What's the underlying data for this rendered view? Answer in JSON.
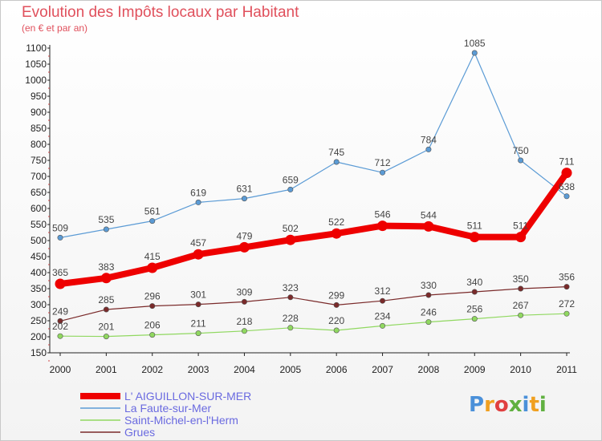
{
  "title": "Evolution des Impôts locaux par Habitant",
  "subtitle": "(en € et par an)",
  "logo": "Proxiti",
  "chart_data": {
    "type": "line",
    "x": [
      "2000",
      "2001",
      "2002",
      "2003",
      "2004",
      "2005",
      "2006",
      "2007",
      "2008",
      "2009",
      "2010",
      "2011"
    ],
    "ylim": [
      150,
      1100
    ],
    "yticks": [
      150,
      200,
      250,
      300,
      350,
      400,
      450,
      500,
      550,
      600,
      650,
      700,
      750,
      800,
      850,
      900,
      950,
      1000,
      1050,
      1100
    ],
    "grid": false,
    "legend_position": "bottom-left",
    "series": [
      {
        "name": "L' AIGUILLON-SUR-MER",
        "color": "#ee0000",
        "values": [
          365,
          383,
          415,
          457,
          479,
          502,
          522,
          546,
          544,
          511,
          511,
          711
        ]
      },
      {
        "name": "La Faute-sur-Mer",
        "color": "#5b9bd5",
        "values": [
          509,
          535,
          561,
          619,
          631,
          659,
          745,
          712,
          784,
          1085,
          750,
          638
        ]
      },
      {
        "name": "Saint-Michel-en-l'Herm",
        "color": "#90d860",
        "values": [
          202,
          201,
          206,
          211,
          218,
          228,
          220,
          234,
          246,
          256,
          267,
          272
        ]
      },
      {
        "name": "Grues",
        "color": "#7a2a2a",
        "values": [
          249,
          285,
          296,
          301,
          309,
          323,
          299,
          312,
          330,
          340,
          350,
          356
        ]
      }
    ]
  }
}
